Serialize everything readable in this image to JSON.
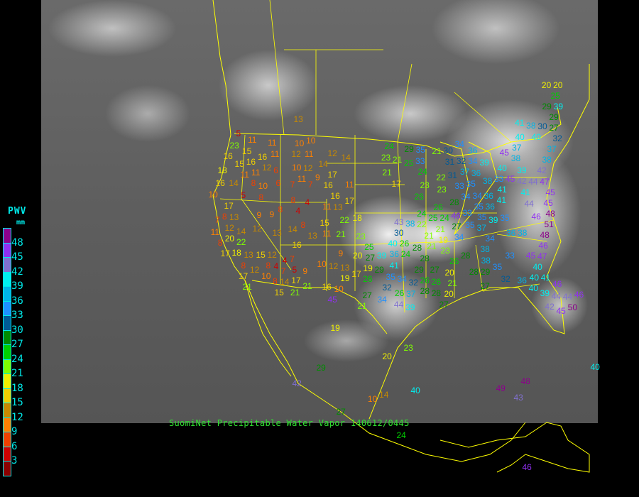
{
  "caption": "SuomiNet Precipitable Water Vapor 140612/0445",
  "legend": {
    "title": "PWV",
    "unit": "mm",
    "labels": [
      "48",
      "45",
      "42",
      "39",
      "36",
      "33",
      "30",
      "27",
      "24",
      "21",
      "18",
      "15",
      "12",
      "9",
      "6",
      "3"
    ],
    "colors_top_to_bottom": [
      "#8c008c",
      "#9030f0",
      "#8070d0",
      "#00f0f0",
      "#00b4e6",
      "#1e90ff",
      "#005a96",
      "#008c00",
      "#00d000",
      "#80ff00",
      "#f0f000",
      "#f0d000",
      "#c88a00",
      "#ff8000",
      "#f04000",
      "#d00000",
      "#8b0000"
    ]
  },
  "border_color": "#ffff00",
  "stations": [
    "13",
    "11",
    "11",
    "10",
    "10",
    "11",
    "12",
    "11",
    "12",
    "14",
    "16",
    "15",
    "16",
    "15",
    "16",
    "12",
    "11",
    "11",
    "6",
    "10",
    "12",
    "14",
    "18",
    "14",
    "10",
    "8",
    "10",
    "6",
    "7",
    "7",
    "11",
    "9",
    "17",
    "16",
    "11",
    "5",
    "8",
    "8",
    "4",
    "4",
    "16",
    "17",
    "11",
    "13",
    "17",
    "8",
    "9",
    "9",
    "8",
    "8",
    "15",
    "11",
    "13",
    "14",
    "13",
    "12",
    "13",
    "14",
    "11",
    "20",
    "21",
    "23",
    "18",
    "22",
    "7",
    "8",
    "16",
    "22",
    "18",
    "17",
    "13",
    "15",
    "12",
    "7",
    "4",
    "4",
    "8",
    "5",
    "9",
    "10",
    "7",
    "12",
    "8",
    "9",
    "10",
    "12",
    "13",
    "17",
    "19",
    "16",
    "10",
    "21",
    "17",
    "14",
    "8",
    "17",
    "21",
    "15",
    "21",
    "24",
    "29",
    "35",
    "21",
    "30",
    "23",
    "21",
    "33",
    "25",
    "34",
    "36",
    "31",
    "32",
    "21",
    "24",
    "22",
    "31",
    "34",
    "39",
    "37",
    "36",
    "35",
    "38",
    "33",
    "40",
    "17",
    "23",
    "23",
    "26",
    "33",
    "28",
    "34",
    "34",
    "36",
    "41",
    "33",
    "35",
    "35",
    "36",
    "35",
    "39",
    "37",
    "35",
    "24",
    "26",
    "24",
    "46",
    "22",
    "25",
    "21",
    "21",
    "19",
    "27",
    "34",
    "21",
    "23",
    "43",
    "38",
    "30",
    "40",
    "26",
    "36",
    "24",
    "28",
    "28",
    "25",
    "20",
    "27",
    "39",
    "19",
    "29",
    "41",
    "35",
    "34",
    "32",
    "29",
    "27",
    "26",
    "26",
    "28",
    "28",
    "26",
    "32",
    "34",
    "27",
    "21",
    "26",
    "37",
    "44",
    "39",
    "28",
    "26",
    "20",
    "21",
    "20",
    "28",
    "29",
    "27",
    "27",
    "38",
    "38",
    "35",
    "34",
    "36",
    "38",
    "33",
    "45",
    "32",
    "36",
    "40",
    "40",
    "41",
    "46",
    "40",
    "39",
    "44",
    "44",
    "46",
    "42",
    "45",
    "50",
    "41",
    "38",
    "30",
    "27",
    "29",
    "25",
    "40",
    "40",
    "32",
    "45",
    "37",
    "38",
    "37",
    "38",
    "42",
    "39",
    "47",
    "45",
    "42",
    "44",
    "45",
    "41",
    "41",
    "44",
    "45",
    "48",
    "46",
    "51",
    "48",
    "46",
    "47",
    "45",
    "19",
    "20",
    "23",
    "10",
    "14",
    "40",
    "42",
    "29",
    "27",
    "24",
    "48",
    "43",
    "49",
    "46",
    "20",
    "20",
    "39",
    "29",
    "40",
    "5",
    "23",
    "16",
    "12"
  ]
}
